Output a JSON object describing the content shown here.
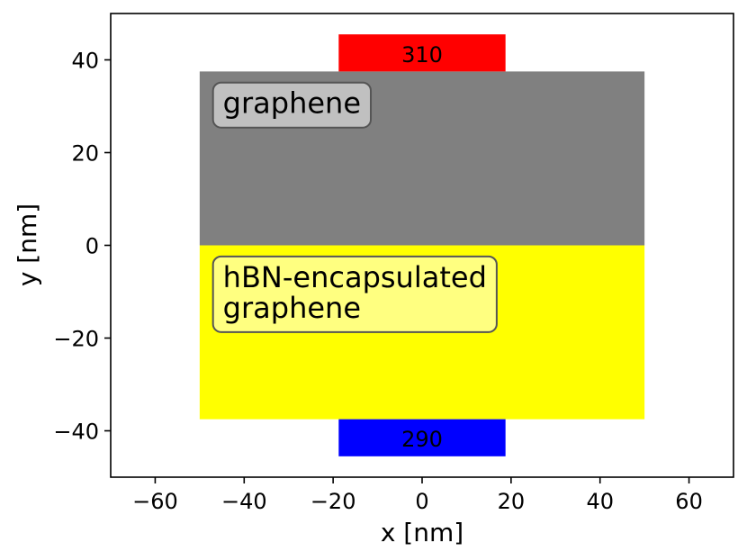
{
  "chart_data": {
    "type": "heatmap",
    "xlabel": "x [nm]",
    "ylabel": "y [nm]",
    "xlim": [
      -70,
      70
    ],
    "ylim": [
      -50,
      50
    ],
    "xticks": [
      -60,
      -40,
      -20,
      0,
      20,
      40,
      60
    ],
    "yticks": [
      -40,
      -20,
      0,
      20,
      40
    ],
    "xtick_labels": [
      "−60",
      "−40",
      "−20",
      "0",
      "20",
      "40",
      "60"
    ],
    "ytick_labels": [
      "−40",
      "−20",
      "0",
      "20",
      "40"
    ],
    "grid": false,
    "regions": [
      {
        "name": "graphene",
        "x": [
          -50,
          50
        ],
        "y": [
          0,
          37.5
        ],
        "color": "#808080"
      },
      {
        "name": "hBN-encapsulated graphene",
        "x": [
          -50,
          50
        ],
        "y": [
          -37.5,
          0
        ],
        "color": "#ffff00"
      }
    ],
    "contacts": [
      {
        "label": "310",
        "x": [
          -18.75,
          18.75
        ],
        "y": [
          37.5,
          45.5
        ],
        "color": "#ff0000"
      },
      {
        "label": "290",
        "x": [
          -18.75,
          18.75
        ],
        "y": [
          -45.5,
          -37.5
        ],
        "color": "#0000ff"
      }
    ],
    "annotations": [
      {
        "lines": [
          "graphene"
        ],
        "anchor_x": -47,
        "anchor_y": 28.5,
        "box_color": "#c0c0c0"
      },
      {
        "lines": [
          "hBN-encapsulated",
          "graphene"
        ],
        "anchor_x": -47,
        "anchor_y": -9,
        "box_color": "#ffff80"
      }
    ]
  }
}
